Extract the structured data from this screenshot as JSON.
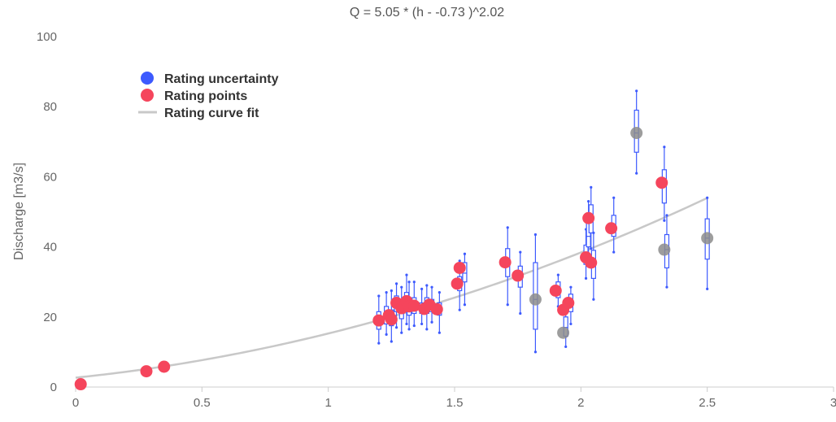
{
  "chart_data": {
    "type": "scatter",
    "title": "Q = 5.05 * (h - -0.73 )^2.02",
    "xlabel": "",
    "ylabel": "Discharge [m3/s]",
    "xlim": [
      0,
      3
    ],
    "ylim": [
      0,
      100
    ],
    "x_ticks": [
      "0",
      "0.5",
      "1",
      "1.5",
      "2",
      "2.5",
      "3"
    ],
    "y_ticks": [
      "0",
      "20",
      "40",
      "60",
      "80",
      "100"
    ],
    "grid": false,
    "legend_position": "top-left",
    "legend": [
      {
        "name": "Rating uncertainty",
        "color": "#3d5afe",
        "symbol": "circle"
      },
      {
        "name": "Rating points",
        "color": "#f5455c",
        "symbol": "circle"
      },
      {
        "name": "Rating curve fit",
        "color": "#c8c8c8",
        "symbol": "line"
      }
    ],
    "curve": {
      "a": 5.05,
      "h0": -0.73,
      "b": 2.02,
      "x_range": [
        0,
        2.5
      ]
    },
    "rating_points": [
      {
        "x": 0.02,
        "y": 0.8
      },
      {
        "x": 0.28,
        "y": 4.5
      },
      {
        "x": 0.35,
        "y": 5.8
      },
      {
        "x": 1.2,
        "y": 19.0
      },
      {
        "x": 1.24,
        "y": 20.5
      },
      {
        "x": 1.25,
        "y": 19.3
      },
      {
        "x": 1.27,
        "y": 24.0
      },
      {
        "x": 1.29,
        "y": 22.5
      },
      {
        "x": 1.31,
        "y": 24.5
      },
      {
        "x": 1.32,
        "y": 23.0
      },
      {
        "x": 1.34,
        "y": 23.2
      },
      {
        "x": 1.38,
        "y": 22.3
      },
      {
        "x": 1.4,
        "y": 23.5
      },
      {
        "x": 1.43,
        "y": 22.2
      },
      {
        "x": 1.51,
        "y": 29.5
      },
      {
        "x": 1.52,
        "y": 34.0
      },
      {
        "x": 1.7,
        "y": 35.6
      },
      {
        "x": 1.75,
        "y": 31.8
      },
      {
        "x": 1.9,
        "y": 27.5
      },
      {
        "x": 1.93,
        "y": 22.0
      },
      {
        "x": 1.95,
        "y": 24.0
      },
      {
        "x": 2.02,
        "y": 37.0
      },
      {
        "x": 2.03,
        "y": 48.2
      },
      {
        "x": 2.04,
        "y": 35.5
      },
      {
        "x": 2.12,
        "y": 45.3
      },
      {
        "x": 2.32,
        "y": 58.3
      }
    ],
    "excluded_points": [
      {
        "x": 1.82,
        "y": 25.0
      },
      {
        "x": 1.93,
        "y": 15.5
      },
      {
        "x": 2.22,
        "y": 72.5
      },
      {
        "x": 2.33,
        "y": 39.2
      },
      {
        "x": 2.5,
        "y": 42.5
      }
    ],
    "uncertainty": [
      {
        "x": 1.2,
        "min": 12.5,
        "q1": 16.5,
        "median": 19.0,
        "q3": 21.5,
        "max": 26.0
      },
      {
        "x": 1.23,
        "min": 15.0,
        "q1": 18.0,
        "median": 20.5,
        "q3": 23.0,
        "max": 27.0
      },
      {
        "x": 1.25,
        "min": 13.0,
        "q1": 17.5,
        "median": 19.3,
        "q3": 22.0,
        "max": 27.5
      },
      {
        "x": 1.27,
        "min": 17.0,
        "q1": 21.5,
        "median": 24.0,
        "q3": 26.0,
        "max": 29.5
      },
      {
        "x": 1.29,
        "min": 15.5,
        "q1": 19.5,
        "median": 22.5,
        "q3": 25.0,
        "max": 28.5
      },
      {
        "x": 1.31,
        "min": 18.0,
        "q1": 22.0,
        "median": 24.5,
        "q3": 27.0,
        "max": 32.0
      },
      {
        "x": 1.32,
        "min": 16.5,
        "q1": 20.5,
        "median": 23.0,
        "q3": 25.5,
        "max": 30.0
      },
      {
        "x": 1.34,
        "min": 17.5,
        "q1": 21.0,
        "median": 23.2,
        "q3": 25.5,
        "max": 30.0
      },
      {
        "x": 1.37,
        "min": 18.0,
        "q1": 21.0,
        "median": 22.3,
        "q3": 24.0,
        "max": 28.0
      },
      {
        "x": 1.39,
        "min": 16.5,
        "q1": 21.0,
        "median": 23.5,
        "q3": 25.5,
        "max": 29.0
      },
      {
        "x": 1.41,
        "min": 18.5,
        "q1": 21.5,
        "median": 23.2,
        "q3": 25.0,
        "max": 28.5
      },
      {
        "x": 1.44,
        "min": 15.5,
        "q1": 20.5,
        "median": 22.2,
        "q3": 24.0,
        "max": 27.0
      },
      {
        "x": 1.52,
        "min": 22.0,
        "q1": 27.5,
        "median": 29.5,
        "q3": 31.5,
        "max": 36.0
      },
      {
        "x": 1.54,
        "min": 23.5,
        "q1": 30.0,
        "median": 32.5,
        "q3": 35.5,
        "max": 38.0
      },
      {
        "x": 1.71,
        "min": 23.5,
        "q1": 31.5,
        "median": 35.6,
        "q3": 39.5,
        "max": 45.5
      },
      {
        "x": 1.76,
        "min": 21.0,
        "q1": 28.5,
        "median": 31.8,
        "q3": 34.5,
        "max": 38.5
      },
      {
        "x": 1.82,
        "min": 10.0,
        "q1": 16.5,
        "median": 25.0,
        "q3": 35.5,
        "max": 43.5
      },
      {
        "x": 1.91,
        "min": 23.0,
        "q1": 25.5,
        "median": 27.5,
        "q3": 30.0,
        "max": 32.0
      },
      {
        "x": 1.94,
        "min": 11.5,
        "q1": 14.5,
        "median": 17.0,
        "q3": 20.0,
        "max": 23.0
      },
      {
        "x": 1.96,
        "min": 18.0,
        "q1": 21.5,
        "median": 24.0,
        "q3": 26.5,
        "max": 28.5
      },
      {
        "x": 2.02,
        "min": 31.0,
        "q1": 35.0,
        "median": 37.0,
        "q3": 40.5,
        "max": 45.0
      },
      {
        "x": 2.03,
        "min": 35.0,
        "q1": 40.0,
        "median": 43.0,
        "q3": 47.0,
        "max": 53.0
      },
      {
        "x": 2.04,
        "min": 39.5,
        "q1": 44.0,
        "median": 48.2,
        "q3": 52.0,
        "max": 57.0
      },
      {
        "x": 2.05,
        "min": 25.0,
        "q1": 31.0,
        "median": 35.5,
        "q3": 39.0,
        "max": 44.0
      },
      {
        "x": 2.13,
        "min": 38.5,
        "q1": 43.0,
        "median": 45.3,
        "q3": 49.0,
        "max": 54.0
      },
      {
        "x": 2.22,
        "min": 61.0,
        "q1": 67.0,
        "median": 72.5,
        "q3": 79.0,
        "max": 84.5
      },
      {
        "x": 2.33,
        "min": 47.5,
        "q1": 52.5,
        "median": 58.3,
        "q3": 62.0,
        "max": 68.5
      },
      {
        "x": 2.34,
        "min": 28.5,
        "q1": 34.0,
        "median": 39.2,
        "q3": 43.5,
        "max": 49.0
      },
      {
        "x": 2.5,
        "min": 28.0,
        "q1": 36.5,
        "median": 42.5,
        "q3": 48.0,
        "max": 54.0
      }
    ],
    "colors": {
      "rating_point": "#f5455c",
      "excluded_point": "#8c8c8c",
      "uncertainty": "#3d5afe",
      "curve": "#c8c8c8",
      "axis": "#cccccc"
    }
  }
}
